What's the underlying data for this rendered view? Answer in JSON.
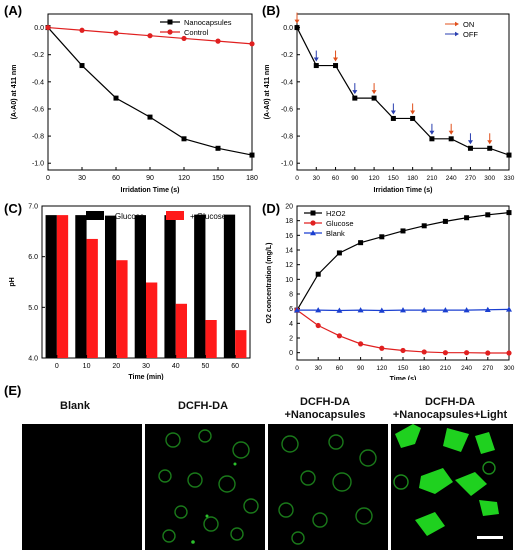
{
  "panels": [
    {
      "letter": "(A)"
    },
    {
      "letter": "(B)"
    },
    {
      "letter": "(C)"
    },
    {
      "letter": "(D)"
    },
    {
      "letter": "(E)"
    }
  ],
  "chart_data": [
    {
      "type": "line",
      "panel": "(A)",
      "xlabel": "Irridation Time (s)",
      "ylabel": "(A-A0) at 411 nm",
      "xlim": [
        0,
        180
      ],
      "ylim": [
        -1.05,
        0.1
      ],
      "xticks": [
        0,
        30,
        60,
        90,
        120,
        150,
        180
      ],
      "yticks": [
        0.0,
        -0.2,
        -0.4,
        -0.6,
        -0.8,
        -1.0
      ],
      "ytick_labels": [
        "0.0",
        "-0.2",
        "-0.4",
        "-0.6",
        "-0.8",
        "-1.0"
      ],
      "x": [
        0,
        30,
        60,
        90,
        120,
        150,
        180
      ],
      "series": [
        {
          "name": "Nanocapsules",
          "color": "#000000",
          "marker": "square",
          "values": [
            0.0,
            -0.28,
            -0.52,
            -0.66,
            -0.82,
            -0.89,
            -0.94
          ]
        },
        {
          "name": "Control",
          "color": "#e02020",
          "marker": "circle",
          "values": [
            0.0,
            -0.02,
            -0.04,
            -0.06,
            -0.08,
            -0.1,
            -0.12
          ]
        }
      ],
      "legend": "top-right"
    },
    {
      "type": "line",
      "panel": "(B)",
      "xlabel": "Irridation Time (s)",
      "ylabel": "(A-A0) at 411 nm",
      "xlim": [
        0,
        330
      ],
      "ylim": [
        -1.05,
        0.1
      ],
      "xticks": [
        0,
        30,
        60,
        90,
        120,
        150,
        180,
        210,
        240,
        270,
        300,
        330
      ],
      "yticks": [
        0.0,
        -0.2,
        -0.4,
        -0.6,
        -0.8,
        -1.0
      ],
      "ytick_labels": [
        "0.0",
        "-0.2",
        "-0.4",
        "-0.6",
        "-0.8",
        "-1.0"
      ],
      "step_series": {
        "color": "#000000",
        "points": [
          [
            0,
            0.0
          ],
          [
            30,
            -0.28
          ],
          [
            60,
            -0.28
          ],
          [
            90,
            -0.52
          ],
          [
            120,
            -0.52
          ],
          [
            150,
            -0.67
          ],
          [
            180,
            -0.67
          ],
          [
            210,
            -0.82
          ],
          [
            240,
            -0.82
          ],
          [
            270,
            -0.89
          ],
          [
            300,
            -0.89
          ],
          [
            330,
            -0.94
          ]
        ]
      },
      "arrows": [
        {
          "x": 0,
          "type": "ON"
        },
        {
          "x": 30,
          "type": "OFF"
        },
        {
          "x": 60,
          "type": "ON"
        },
        {
          "x": 90,
          "type": "OFF"
        },
        {
          "x": 120,
          "type": "ON"
        },
        {
          "x": 150,
          "type": "OFF"
        },
        {
          "x": 180,
          "type": "ON"
        },
        {
          "x": 210,
          "type": "OFF"
        },
        {
          "x": 240,
          "type": "ON"
        },
        {
          "x": 270,
          "type": "OFF"
        },
        {
          "x": 300,
          "type": "ON"
        }
      ],
      "legend_items": [
        {
          "label": "ON",
          "color": "#e0501c"
        },
        {
          "label": "OFF",
          "color": "#2a3fb0"
        }
      ],
      "legend": "top-right"
    },
    {
      "type": "bar",
      "panel": "(C)",
      "xlabel": "Time (min)",
      "ylabel": "pH",
      "categories": [
        "0",
        "10",
        "20",
        "30",
        "40",
        "50",
        "60"
      ],
      "ylim": [
        4.0,
        7.0
      ],
      "yticks": [
        4.0,
        5.0,
        6.0,
        7.0
      ],
      "ytick_labels": [
        "4.0",
        "5.0",
        "6.0",
        "7.0"
      ],
      "series": [
        {
          "name": "- Glucose",
          "color": "#000000",
          "values": [
            6.82,
            6.82,
            6.81,
            6.82,
            6.82,
            6.83,
            6.83
          ]
        },
        {
          "name": "+ Glucose",
          "color": "#ff1a1a",
          "values": [
            6.82,
            6.35,
            5.93,
            5.49,
            5.07,
            4.75,
            4.55
          ]
        }
      ],
      "legend": "top"
    },
    {
      "type": "line",
      "panel": "(D)",
      "xlabel": "Time (s)",
      "ylabel": "O2 concentration (mg/L)",
      "xlim": [
        0,
        300
      ],
      "ylim": [
        -1,
        20
      ],
      "xticks": [
        0,
        30,
        60,
        90,
        120,
        150,
        180,
        210,
        240,
        270,
        300
      ],
      "yticks": [
        0,
        2,
        4,
        6,
        8,
        10,
        12,
        14,
        16,
        18,
        20
      ],
      "x": [
        0,
        30,
        60,
        90,
        120,
        150,
        180,
        210,
        240,
        270,
        300
      ],
      "series": [
        {
          "name": "H2O2",
          "color": "#000000",
          "marker": "square",
          "values": [
            5.8,
            10.7,
            13.6,
            15.0,
            15.8,
            16.6,
            17.3,
            17.9,
            18.4,
            18.8,
            19.1
          ]
        },
        {
          "name": "Glucose",
          "color": "#e02020",
          "marker": "circle",
          "values": [
            5.8,
            3.7,
            2.3,
            1.2,
            0.6,
            0.3,
            0.1,
            0.0,
            0.0,
            -0.05,
            -0.05
          ]
        },
        {
          "name": "Blank",
          "color": "#1a3fd0",
          "marker": "triangle",
          "values": [
            5.8,
            5.8,
            5.75,
            5.8,
            5.75,
            5.8,
            5.8,
            5.8,
            5.8,
            5.85,
            5.9
          ]
        }
      ],
      "legend": "top-left"
    }
  ],
  "microscopy": {
    "titles": [
      {
        "line1": "Blank",
        "line2": ""
      },
      {
        "line1": "DCFH-DA",
        "line2": ""
      },
      {
        "line1": "DCFH-DA",
        "line2": "+Nanocapsules"
      },
      {
        "line1": "DCFH-DA",
        "line2": "+Nanocapsules+Light"
      }
    ],
    "fluorescence_color": "#22dd22"
  }
}
